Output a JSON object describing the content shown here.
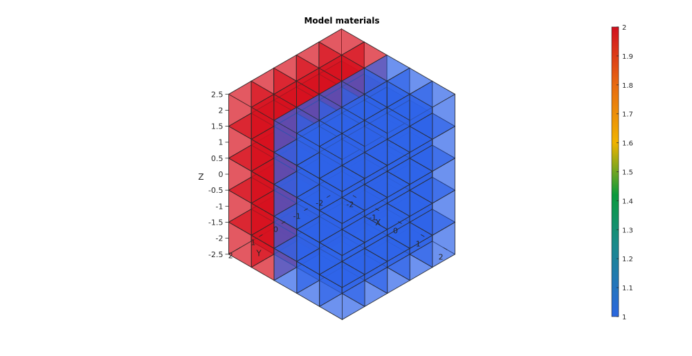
{
  "chart_data": {
    "type": "3d-voxel",
    "title": "Model materials",
    "xlabel": "X",
    "ylabel": "Y",
    "zlabel": "Z",
    "grid": {
      "nx": 5,
      "ny": 5,
      "nz": 5,
      "cell_size": 1.0
    },
    "x_ticks": [
      "-2",
      "-1",
      "0",
      "1",
      "2"
    ],
    "y_ticks": [
      "2",
      "1",
      "0",
      "-1",
      "-2"
    ],
    "z_ticks": [
      "2.5",
      "2",
      "1.5",
      "1",
      "0.5",
      "0",
      "-0.5",
      "-1",
      "-1.5",
      "-2",
      "-2.5"
    ],
    "materials": [
      {
        "value": 2,
        "color": "#d7121f",
        "region": "x < -1"
      },
      {
        "value": 1,
        "color": "#2e63e8",
        "region": "x >= -1"
      }
    ],
    "face_alpha": 0.7,
    "colorbar": {
      "min": 1,
      "max": 2,
      "ticks": [
        "2",
        "1.9",
        "1.8",
        "1.7",
        "1.6",
        "1.5",
        "1.4",
        "1.3",
        "1.2",
        "1.1",
        "1"
      ],
      "stops": [
        "#2b66e0",
        "#0a9a3c",
        "#f0b300",
        "#e03318",
        "#d10f1f"
      ]
    }
  }
}
